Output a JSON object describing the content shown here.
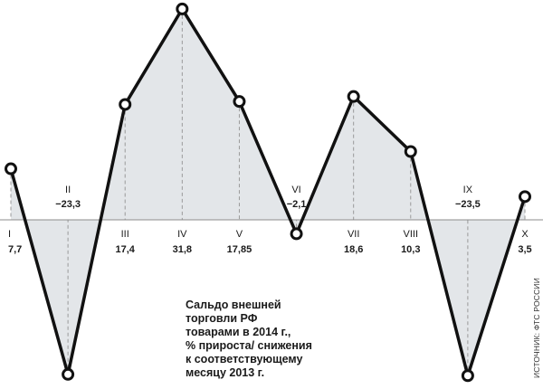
{
  "chart_data": {
    "type": "line",
    "categories": [
      "I",
      "II",
      "III",
      "IV",
      "V",
      "VI",
      "VII",
      "VIII",
      "IX",
      "X"
    ],
    "value_labels": [
      "7,7",
      "−23,3",
      "17,4",
      "31,8",
      "17,85",
      "−2,1",
      "18,6",
      "10,3",
      "−23,5",
      "3,5"
    ],
    "values": [
      7.7,
      -23.3,
      17.4,
      31.8,
      17.85,
      -2.1,
      18.6,
      10.3,
      -23.5,
      3.5
    ],
    "title_lines": [
      "Сальдо внешней",
      "торговли РФ",
      "товарами в 2014 г.,",
      "% прироста/ снижения",
      "к соответствующему",
      "месяцу 2013 г."
    ],
    "source": "ИСТОЧНИК: ФТС РОССИИ",
    "xlabel": "",
    "ylabel": "",
    "ylim": [
      -23.5,
      31.8
    ],
    "grid": false,
    "legend": "none",
    "colors": {
      "line": "#111111",
      "fill": "#e3e6e9",
      "guide": "#9a9a9a",
      "axis": "#8c8c8c",
      "marker_fill": "#ffffff"
    }
  }
}
